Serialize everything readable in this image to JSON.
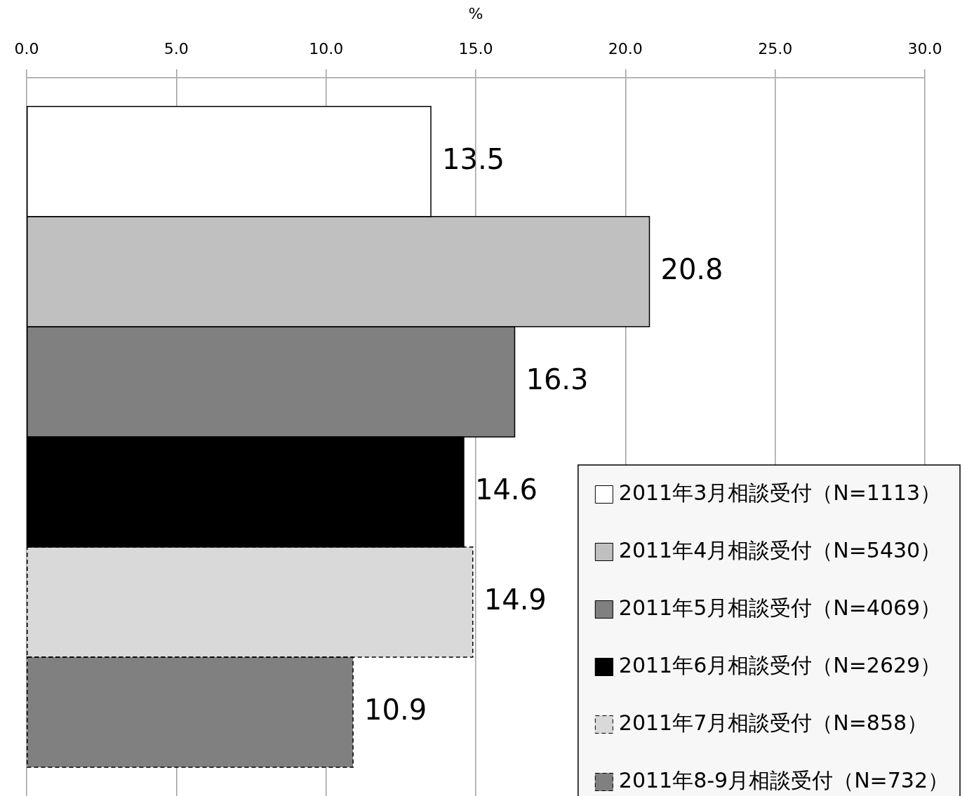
{
  "chart_data": {
    "type": "bar",
    "orientation": "horizontal",
    "xlabel": "%",
    "categories": [
      null
    ],
    "series": [
      {
        "name": "2011年3月相談受付（N=1113）",
        "color": "#ffffff",
        "values": [
          13.5
        ],
        "line_style": "solid"
      },
      {
        "name": "2011年4月相談受付（N=5430）",
        "color": "#c0c0c0",
        "values": [
          20.8
        ],
        "line_style": "solid"
      },
      {
        "name": "2011年5月相談受付（N=4069）",
        "color": "#808080",
        "values": [
          16.3
        ],
        "line_style": "solid"
      },
      {
        "name": "2011年6月相談受付（N=2629）",
        "color": "#000000",
        "values": [
          14.6
        ],
        "line_style": "solid"
      },
      {
        "name": "2011年7月相談受付（N=858）",
        "color": "#d9d9d9",
        "values": [
          14.9
        ],
        "line_style": "dashed"
      },
      {
        "name": "2011年8-9月相談受付（N=732）",
        "color": "#808080",
        "values": [
          10.9
        ],
        "line_style": "dashed"
      }
    ],
    "xlim": [
      0,
      30
    ],
    "xticks": [
      {
        "value": 0,
        "label": "0.0"
      },
      {
        "value": 5,
        "label": "5.0"
      },
      {
        "value": 10,
        "label": "10.0"
      },
      {
        "value": 15,
        "label": "15.0"
      },
      {
        "value": 20,
        "label": "20.0"
      },
      {
        "value": 25,
        "label": "25.0"
      },
      {
        "value": 30,
        "label": "30.0"
      }
    ],
    "grid": "x",
    "legend": "bottom right",
    "data_labels": true
  }
}
